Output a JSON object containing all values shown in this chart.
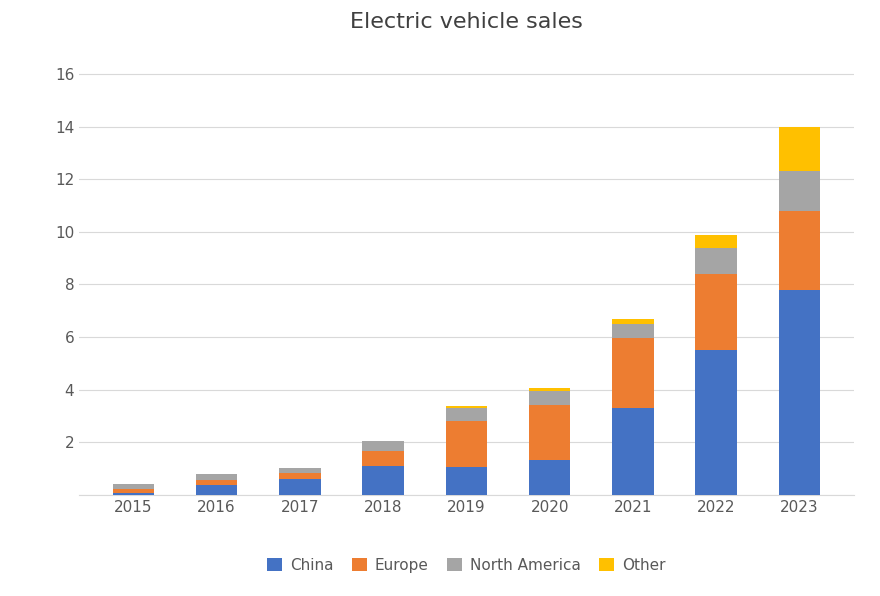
{
  "title": "Electric vehicle sales",
  "years": [
    2015,
    2016,
    2017,
    2018,
    2019,
    2020,
    2021,
    2022,
    2023
  ],
  "china": [
    0.05,
    0.35,
    0.6,
    1.1,
    1.05,
    1.3,
    3.3,
    5.5,
    7.8
  ],
  "europe": [
    0.17,
    0.22,
    0.22,
    0.55,
    1.75,
    2.1,
    2.65,
    2.9,
    3.0
  ],
  "north_america": [
    0.2,
    0.2,
    0.2,
    0.38,
    0.5,
    0.55,
    0.55,
    1.0,
    1.5
  ],
  "other": [
    0.0,
    0.0,
    0.0,
    0.0,
    0.07,
    0.1,
    0.2,
    0.47,
    1.7
  ],
  "colors": {
    "China": "#4472C4",
    "Europe": "#ED7D31",
    "North America": "#A5A5A5",
    "Other": "#FFC000"
  },
  "ylim": [
    0,
    17
  ],
  "yticks": [
    0,
    2,
    4,
    6,
    8,
    10,
    12,
    14,
    16
  ],
  "background_color": "#FFFFFF",
  "grid_color": "#D9D9D9",
  "title_fontsize": 16,
  "tick_fontsize": 11,
  "legend_fontsize": 11
}
